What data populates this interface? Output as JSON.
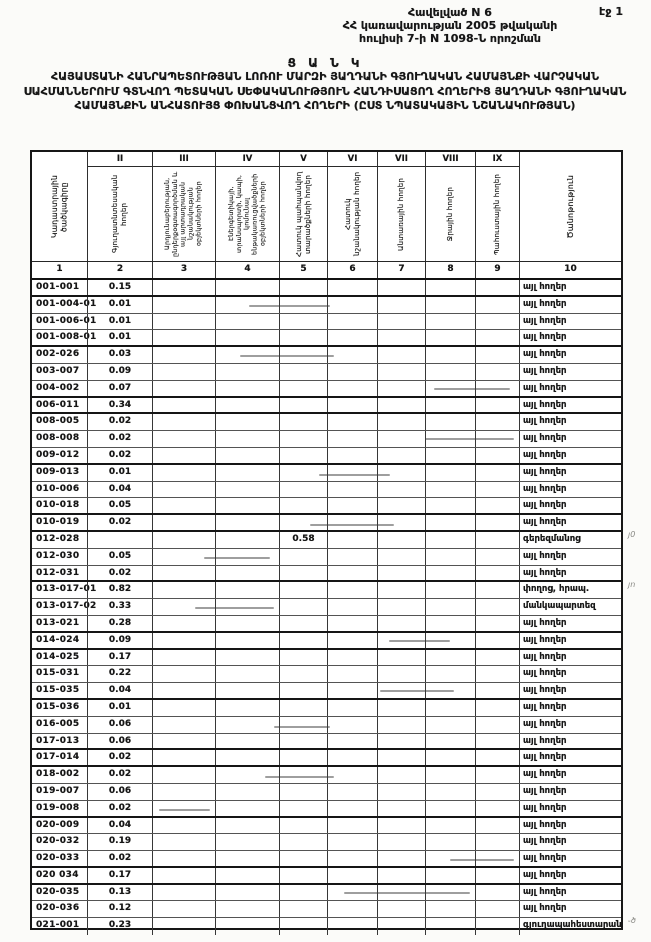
{
  "page": {
    "page_label": "էջ 1"
  },
  "annex": {
    "line1": "Հավելված N 6",
    "line2": "ՀՀ կառավարության 2005 թվականի",
    "line3": "հուլիսի 7-ի  N 1098-Ն որոշման"
  },
  "title": {
    "heading": "Ց Ա Ն Կ",
    "body": "ՀԱՅԱՍՏԱՆԻ ՀԱՆՐԱՊԵՏՈՒԹՅԱՆ ԼՈՌՈՒ ՄԱՐԶԻ ՅԱՂԴԱՆԻ ԳՅՈՒՂԱԿԱՆ ՀԱՄԱՅՆՔԻ ՎԱՐՉԱԿԱՆ ՍԱՀՄԱՆՆԵՐՈՒՄ ԳՏՆՎՈՂ ՊԵՏԱԿԱՆ ՍԵՓԱԿԱՆՈՒԹՅՈՒՆ ՀԱՆԴԻՍԱՑՈՂ ՀՈՂԵՐԻՑ ՅԱՂԴԱՆԻ ԳՅՈՒՂԱԿԱՆ ՀԱՄԱՅՆՔԻՆ ԱՆՀԱՏՈՒՅՑ ՓՈԽԱՆՑՎՈՂ ՀՈՂԵՐԻ (ԸՍՏ ՆՊԱՏԱԿԱՅԻՆ ՆՇԱՆԱԿՈՒԹՅԱՆ)"
  },
  "table": {
    "columns": [
      {
        "num": "1",
        "roman": "",
        "label": "Կադաստրային ծածկագիրը"
      },
      {
        "num": "2",
        "roman": "II",
        "label": "Գյուղատնտեսական հողեր"
      },
      {
        "num": "3",
        "roman": "III",
        "label": "Արդյունաբերության, ընդերքօգտագործման և այլ արտադրական նշանակության օբյեկտների հողեր"
      },
      {
        "num": "4",
        "roman": "IV",
        "label": "Էներգետիկայի, տրանսպորտի, կապի, կոմունալ ենթակառուցվածքների օբյեկտների հողեր"
      },
      {
        "num": "5",
        "roman": "V",
        "label": "Հատուկ պահպանվող տարածքների հողեր"
      },
      {
        "num": "6",
        "roman": "VI",
        "label": "Հատուկ նշանակության հողեր"
      },
      {
        "num": "7",
        "roman": "VII",
        "label": "Անտառային հողեր"
      },
      {
        "num": "8",
        "roman": "VIII",
        "label": "Ջրային հողեր"
      },
      {
        "num": "9",
        "roman": "IX",
        "label": "Պահուստային հողեր"
      },
      {
        "num": "10",
        "roman": "",
        "label": "Ծանոթություն"
      }
    ],
    "rows": [
      {
        "code": "001-001",
        "col2": "0.15",
        "col5": "",
        "note": "այլ հողեր",
        "mark": ""
      },
      {
        "code": "001-004-01",
        "col2": "0.01",
        "col5": "",
        "note": "այլ հողեր",
        "mark": ""
      },
      {
        "code": "001-006-01",
        "col2": "0.01",
        "col5": "",
        "note": "այլ հողեր",
        "mark": ""
      },
      {
        "code": "001-008-01",
        "col2": "0.01",
        "col5": "",
        "note": "այլ հողեր",
        "mark": ""
      },
      {
        "code": "002-026",
        "col2": "0.03",
        "col5": "",
        "note": "այլ հողեր",
        "mark": ""
      },
      {
        "code": "003-007",
        "col2": "0.09",
        "col5": "",
        "note": "այլ հողեր",
        "mark": ""
      },
      {
        "code": "004-002",
        "col2": "0.07",
        "col5": "",
        "note": "այլ հողեր",
        "mark": ""
      },
      {
        "code": "006-011",
        "col2": "0.34",
        "col5": "",
        "note": "այլ հողեր",
        "mark": ""
      },
      {
        "code": "008-005",
        "col2": "0.02",
        "col5": "",
        "note": "այլ հողեր",
        "mark": ""
      },
      {
        "code": "008-008",
        "col2": "0.02",
        "col5": "",
        "note": "այլ հողեր",
        "mark": ""
      },
      {
        "code": "009-012",
        "col2": "0.02",
        "col5": "",
        "note": "այլ հողեր",
        "mark": ""
      },
      {
        "code": "009-013",
        "col2": "0.01",
        "col5": "",
        "note": "այլ հողեր",
        "mark": ""
      },
      {
        "code": "010-006",
        "col2": "0.04",
        "col5": "",
        "note": "այլ հողեր",
        "mark": ""
      },
      {
        "code": "010-018",
        "col2": "0.05",
        "col5": "",
        "note": "այլ հողեր",
        "mark": ""
      },
      {
        "code": "010-019",
        "col2": "0.02",
        "col5": "",
        "note": "այլ հողեր",
        "mark": ""
      },
      {
        "code": "012-028",
        "col2": "",
        "col5": "0.58",
        "note": "գերեզմանոց",
        "mark": "յ0"
      },
      {
        "code": "012-030",
        "col2": "0.05",
        "col5": "",
        "note": "այլ հողեր",
        "mark": ""
      },
      {
        "code": "012-031",
        "col2": "0.02",
        "col5": "",
        "note": "այլ հողեր",
        "mark": ""
      },
      {
        "code": "013-017-01",
        "col2": "0.82",
        "col5": "",
        "note": "փողոց, հրապ.",
        "mark": "յո"
      },
      {
        "code": "013-017-02",
        "col2": "0.33",
        "col5": "",
        "note": "մանկապարտեզ",
        "mark": ""
      },
      {
        "code": "013-021",
        "col2": "0.28",
        "col5": "",
        "note": "այլ հողեր",
        "mark": ""
      },
      {
        "code": "014-024",
        "col2": "0.09",
        "col5": "",
        "note": "այլ հողեր",
        "mark": ""
      },
      {
        "code": "014-025",
        "col2": "0.17",
        "col5": "",
        "note": "այլ հողեր",
        "mark": ""
      },
      {
        "code": "015-031",
        "col2": "0.22",
        "col5": "",
        "note": "այլ հողեր",
        "mark": ""
      },
      {
        "code": "015-035",
        "col2": "0.04",
        "col5": "",
        "note": "այլ հողեր",
        "mark": ""
      },
      {
        "code": "015-036",
        "col2": "0.01",
        "col5": "",
        "note": "այլ հողեր",
        "mark": ""
      },
      {
        "code": "016-005",
        "col2": "0.06",
        "col5": "",
        "note": "այլ հողեր",
        "mark": ""
      },
      {
        "code": "017-013",
        "col2": "0.06",
        "col5": "",
        "note": "այլ հողեր",
        "mark": ""
      },
      {
        "code": "017-014",
        "col2": "0.02",
        "col5": "",
        "note": "այլ հողեր",
        "mark": ""
      },
      {
        "code": "018-002",
        "col2": "0.02",
        "col5": "",
        "note": "այլ հողեր",
        "mark": ""
      },
      {
        "code": "019-007",
        "col2": "0.06",
        "col5": "",
        "note": "այլ հողեր",
        "mark": ""
      },
      {
        "code": "019-008",
        "col2": "0.02",
        "col5": "",
        "note": "այլ հողեր",
        "mark": ""
      },
      {
        "code": "020-009",
        "col2": "0.04",
        "col5": "",
        "note": "այլ հողեր",
        "mark": ""
      },
      {
        "code": "020-032",
        "col2": "0.19",
        "col5": "",
        "note": "այլ հողեր",
        "mark": ""
      },
      {
        "code": "020-033",
        "col2": "0.02",
        "col5": "",
        "note": "այլ հողեր",
        "mark": ""
      },
      {
        "code": "020 034",
        "col2": "0.17",
        "col5": "",
        "note": "այլ հողեր",
        "mark": ""
      },
      {
        "code": "020-035",
        "col2": "0.13",
        "col5": "",
        "note": "այլ հողեր",
        "mark": ""
      },
      {
        "code": "020-036",
        "col2": "0.12",
        "col5": "",
        "note": "այլ հողեր",
        "mark": ""
      },
      {
        "code": "021-001",
        "col2": "0.23",
        "col5": "",
        "note": "գյուղապահեստարան",
        "mark": "֊ծ"
      }
    ]
  }
}
